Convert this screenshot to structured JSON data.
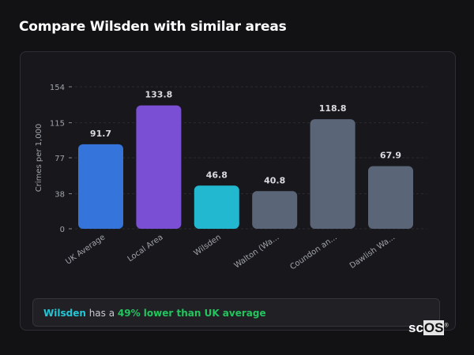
{
  "title": "Compare Wilsden with similar areas",
  "chart_data": {
    "type": "bar",
    "ylabel": "Crimes per 1,000",
    "xlabel": "",
    "ylim": [
      0,
      154
    ],
    "yticks": [
      0,
      38,
      77,
      115,
      154
    ],
    "grid": true,
    "categories": [
      "UK Average",
      "Local Area",
      "Wilsden",
      "Walton (Wa...",
      "Coundon an...",
      "Dawlish Wa..."
    ],
    "values": [
      91.7,
      133.8,
      46.8,
      40.8,
      118.8,
      67.9
    ],
    "data_labels": [
      "91.7",
      "133.8",
      "46.8",
      "40.8",
      "118.8",
      "67.9"
    ],
    "colors": [
      "#3474db",
      "#7b4fd4",
      "#22b8d0",
      "#5b6578",
      "#5b6578",
      "#5b6578"
    ]
  },
  "note": {
    "area": "Wilsden",
    "middle": " has a ",
    "highlight": "49% lower than UK average"
  },
  "logo": {
    "text_a": "sc",
    "text_b": "OS",
    "mark": "®"
  }
}
